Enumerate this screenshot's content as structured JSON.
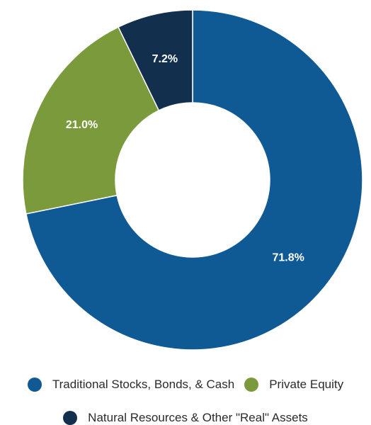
{
  "chart_data": {
    "type": "pie",
    "donut": true,
    "title": "",
    "slices": [
      {
        "label": "Traditional Stocks, Bonds, & Cash",
        "value": 71.8,
        "value_label": "71.8%",
        "color": "#0f5a94"
      },
      {
        "label": "Private Equity",
        "value": 21.0,
        "value_label": "21.0%",
        "color": "#7a9a3c"
      },
      {
        "label": "Natural Resources & Other \"Real\" Assets",
        "value": 7.2,
        "value_label": "7.2%",
        "color": "#12304e"
      }
    ],
    "legend_position": "bottom"
  }
}
